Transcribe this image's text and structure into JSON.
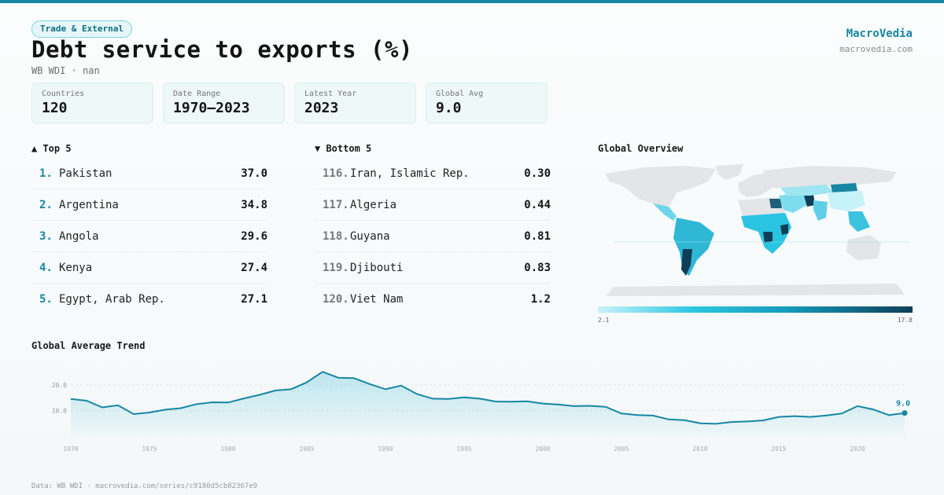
{
  "header": {
    "badge": "Trade & External",
    "title": "Debt service to exports (%)",
    "subtitle": "WB WDI · nan",
    "brand": "MacroVedia",
    "brand_url": "macrovedia.com"
  },
  "stats": [
    {
      "label": "Countries",
      "value": "120"
    },
    {
      "label": "Date Range",
      "value": "1970–2023"
    },
    {
      "label": "Latest Year",
      "value": "2023"
    },
    {
      "label": "Global Avg",
      "value": "9.0"
    }
  ],
  "top5": {
    "heading": "▲ Top 5",
    "items": [
      {
        "rank": "1.",
        "name": "Pakistan",
        "value": "37.0"
      },
      {
        "rank": "2.",
        "name": "Argentina",
        "value": "34.8"
      },
      {
        "rank": "3.",
        "name": "Angola",
        "value": "29.6"
      },
      {
        "rank": "4.",
        "name": "Kenya",
        "value": "27.4"
      },
      {
        "rank": "5.",
        "name": "Egypt, Arab Rep.",
        "value": "27.1"
      }
    ]
  },
  "bottom5": {
    "heading": "▼ Bottom 5",
    "items": [
      {
        "rank": "116.",
        "name": "Iran, Islamic Rep.",
        "value": "0.30"
      },
      {
        "rank": "117.",
        "name": "Algeria",
        "value": "0.44"
      },
      {
        "rank": "118.",
        "name": "Guyana",
        "value": "0.81"
      },
      {
        "rank": "119.",
        "name": "Djibouti",
        "value": "0.83"
      },
      {
        "rank": "120.",
        "name": "Viet Nam",
        "value": "1.2"
      }
    ]
  },
  "map": {
    "heading": "Global Overview",
    "scale_min": "2.1",
    "scale_max": "17.8",
    "colors": {
      "low": "#c8f2fa",
      "mid": "#139bbe",
      "high": "#0f3e57",
      "nodata": "#e3e5e8"
    }
  },
  "trend": {
    "heading": "Global Average Trend",
    "end_label": "9.0"
  },
  "footer": "Data: WB WDI · macrovedia.com/series/c9180d5cb82367e9",
  "chart_data": {
    "type": "area",
    "title": "Global Average Trend",
    "x": [
      1970,
      1971,
      1972,
      1973,
      1974,
      1975,
      1976,
      1977,
      1978,
      1979,
      1980,
      1981,
      1982,
      1983,
      1984,
      1985,
      1986,
      1987,
      1988,
      1989,
      1990,
      1991,
      1992,
      1993,
      1994,
      1995,
      1996,
      1997,
      1998,
      1999,
      2000,
      2001,
      2002,
      2003,
      2004,
      2005,
      2006,
      2007,
      2008,
      2009,
      2010,
      2011,
      2012,
      2013,
      2014,
      2015,
      2016,
      2017,
      2018,
      2019,
      2020,
      2021,
      2022,
      2023
    ],
    "series": [
      {
        "values": [
          14.5,
          13.8,
          11.2,
          12.0,
          8.6,
          9.2,
          10.3,
          10.9,
          12.5,
          13.2,
          13.1,
          14.7,
          16.1,
          17.8,
          18.3,
          21.0,
          25.1,
          22.8,
          22.6,
          20.3,
          18.3,
          19.7,
          16.4,
          14.6,
          14.5,
          15.1,
          14.6,
          13.5,
          13.4,
          13.6,
          12.7,
          12.3,
          11.7,
          11.8,
          11.4,
          8.8,
          8.2,
          8.0,
          6.5,
          6.2,
          5.0,
          4.8,
          5.5,
          5.7,
          6.1,
          7.5,
          7.8,
          7.5,
          8.0,
          8.8,
          11.7,
          10.4,
          8.2,
          9.0
        ]
      }
    ],
    "xticks": [
      "1970",
      "1975",
      "1980",
      "1985",
      "1990",
      "1995",
      "2000",
      "2005",
      "2010",
      "2015",
      "2020"
    ],
    "yticks": [
      "10.0",
      "20.0"
    ],
    "ylim": [
      0,
      27
    ],
    "grid": true
  }
}
